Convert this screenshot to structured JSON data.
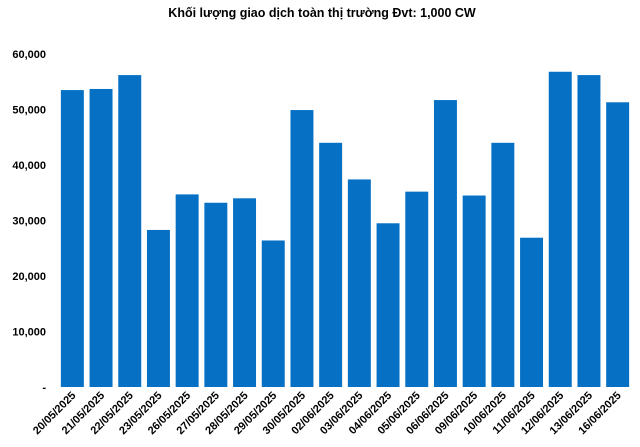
{
  "chart_data": {
    "type": "bar",
    "title": "Khối lượng giao dịch toàn thị trường Đvt: 1,000 CW",
    "xlabel": "",
    "ylabel": "",
    "ylim": [
      0,
      60000
    ],
    "ytick_labels": [
      "-",
      "10,000",
      "20,000",
      "30,000",
      "40,000",
      "50,000",
      "60,000"
    ],
    "ytick_values": [
      0,
      10000,
      20000,
      30000,
      40000,
      50000,
      60000
    ],
    "grid": false,
    "legend": "none",
    "bar_color": "#0570c4",
    "categories": [
      "20/05/2025",
      "21/05/2025",
      "22/05/2025",
      "23/05/2025",
      "26/05/2025",
      "27/05/2025",
      "28/05/2025",
      "29/05/2025",
      "30/05/2025",
      "02/06/2025",
      "03/06/2025",
      "04/06/2025",
      "05/06/2025",
      "06/06/2025",
      "09/06/2025",
      "10/06/2025",
      "11/06/2025",
      "12/06/2025",
      "13/06/2025",
      "16/06/2025"
    ],
    "values": [
      53500,
      53700,
      56200,
      28300,
      34700,
      33200,
      34000,
      26400,
      49900,
      44000,
      37400,
      29500,
      35200,
      51700,
      34500,
      44000,
      26900,
      56800,
      56200,
      51300
    ]
  }
}
